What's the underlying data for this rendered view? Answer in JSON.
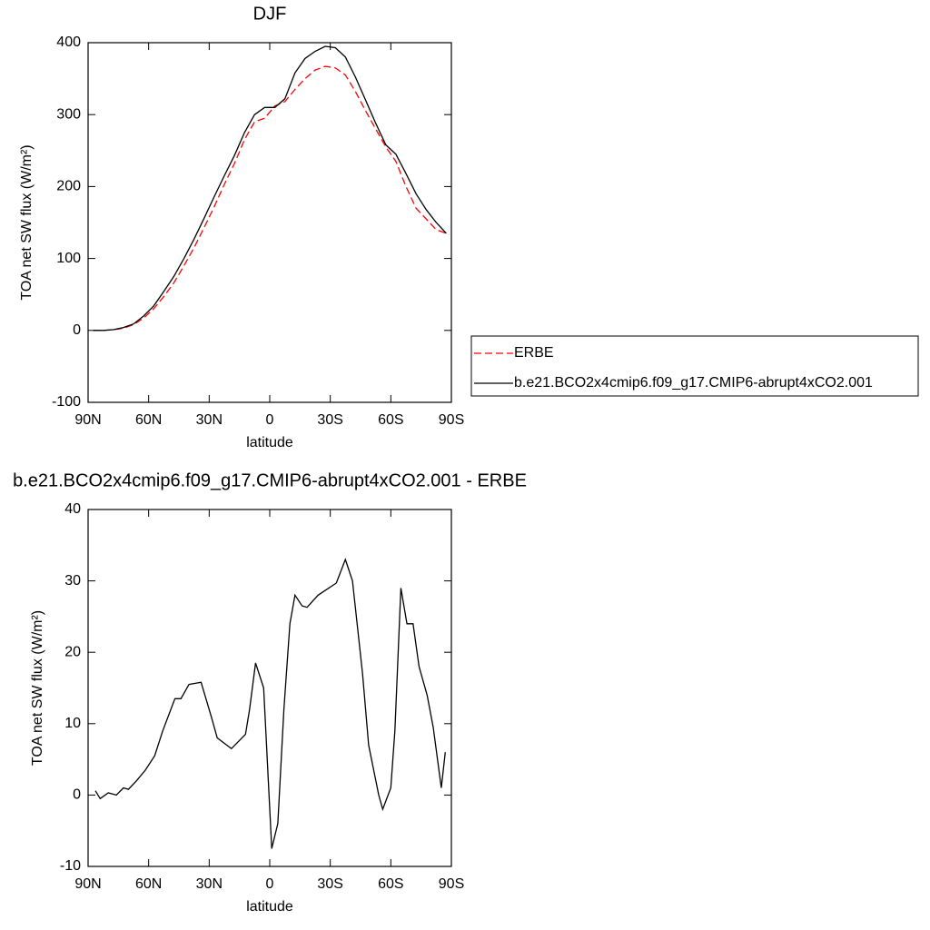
{
  "chart_data": [
    {
      "type": "line",
      "title": "DJF",
      "xlabel": "latitude",
      "ylabel": "TOA net SW flux (W/m²)",
      "x": [
        87.5,
        82.5,
        77.5,
        72.5,
        67.5,
        62.5,
        57.5,
        52.5,
        47.5,
        42.5,
        37.5,
        32.5,
        27.5,
        22.5,
        17.5,
        12.5,
        7.5,
        2.5,
        -2.5,
        -7.5,
        -12.5,
        -17.5,
        -22.5,
        -27.5,
        -32.5,
        -37.5,
        -42.5,
        -47.5,
        -52.5,
        -57.5,
        -62.5,
        -67.5,
        -72.5,
        -77.5,
        -82.5,
        -87.5
      ],
      "series": [
        {
          "name": "ERBE",
          "color": "#ff0000",
          "style": "dashed",
          "values": [
            0,
            0,
            1,
            3,
            8,
            17,
            30,
            47,
            66,
            90,
            115,
            143,
            172,
            203,
            232,
            265,
            290,
            295,
            312,
            318,
            335,
            350,
            362,
            367,
            365,
            355,
            332,
            305,
            280,
            255,
            235,
            200,
            170,
            155,
            140,
            135
          ]
        },
        {
          "name": "b.e21.BCO2x4cmip6.f09_g17.CMIP6-abrupt4xCO2.001",
          "color": "#000000",
          "style": "solid",
          "values": [
            0,
            0,
            1,
            4,
            9,
            20,
            34,
            54,
            75,
            100,
            127,
            156,
            186,
            215,
            243,
            275,
            300,
            310,
            310,
            322,
            358,
            378,
            388,
            395,
            393,
            380,
            352,
            320,
            288,
            258,
            245,
            218,
            190,
            168,
            150,
            135
          ]
        }
      ],
      "xlim": [
        90,
        -90
      ],
      "xticks": [
        {
          "value": 90,
          "label": "90N"
        },
        {
          "value": 60,
          "label": "60N"
        },
        {
          "value": 30,
          "label": "30N"
        },
        0,
        {
          "value": -30,
          "label": "30S"
        },
        {
          "value": -60,
          "label": "60S"
        },
        {
          "value": -90,
          "label": "90S"
        }
      ],
      "ylim": [
        -100,
        400
      ],
      "yticks": [
        -100,
        0,
        100,
        200,
        300,
        400
      ],
      "legend": "right"
    },
    {
      "type": "line",
      "title": "b.e21.BCO2x4cmip6.f09_g17.CMIP6-abrupt4xCO2.001 - ERBE",
      "xlabel": "latitude",
      "ylabel": "TOA net SW flux (W/m²)",
      "x": [
        86.4,
        84,
        80,
        76,
        72.5,
        70,
        66,
        61.6,
        57,
        53,
        47,
        44,
        40,
        34,
        29,
        26,
        19,
        12,
        10,
        7,
        3,
        -1,
        -4,
        -7,
        -10,
        -12.5,
        -16,
        -18.5,
        -24,
        -33,
        -37.5,
        -41,
        -46,
        -49,
        -54,
        -56,
        -60,
        -62,
        -65,
        -68,
        -71,
        -74,
        -78,
        -81,
        -85,
        -87
      ],
      "series": [
        {
          "color": "#000000",
          "style": "solid",
          "values": [
            0.6,
            -0.5,
            0.3,
            0,
            1,
            0.8,
            2,
            3.5,
            5.5,
            9,
            13.5,
            13.5,
            15.5,
            15.8,
            11,
            8,
            6.5,
            8.5,
            12,
            18.5,
            15,
            -7.5,
            -4,
            12,
            24,
            28,
            26.5,
            26.3,
            28,
            29.7,
            33,
            30,
            17,
            7,
            0,
            -2,
            1,
            9,
            29,
            24,
            24,
            18,
            14,
            9.5,
            1,
            6
          ]
        }
      ],
      "xlim": [
        90,
        -90
      ],
      "xticks": [
        {
          "value": 90,
          "label": "90N"
        },
        {
          "value": 60,
          "label": "60N"
        },
        {
          "value": 30,
          "label": "30N"
        },
        0,
        {
          "value": -30,
          "label": "30S"
        },
        {
          "value": -60,
          "label": "60S"
        },
        {
          "value": -90,
          "label": "90S"
        }
      ],
      "ylim": [
        -10,
        40
      ],
      "yticks": [
        -10,
        0,
        10,
        20,
        30,
        40
      ]
    }
  ]
}
